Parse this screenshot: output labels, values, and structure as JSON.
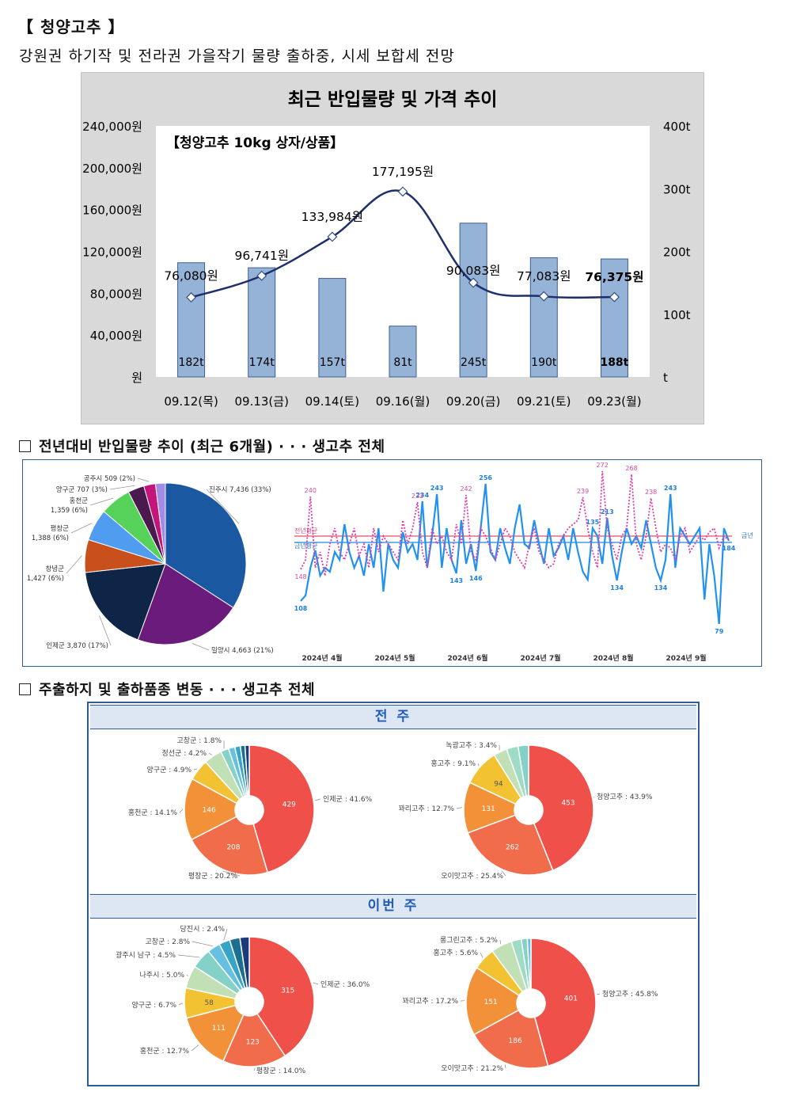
{
  "header": {
    "title": "【 청양고추 】",
    "subtitle": "강원권 하기작 및 전라권 가을작기 물량 출하중, 시세 보합세 전망"
  },
  "chart1": {
    "title": "최근 반입물량 및 가격 추이",
    "inner_label": "【청양고추 10kg 상자/상품】",
    "left_ticks": [
      "240,000원",
      "200,000원",
      "160,000원",
      "120,000원",
      "80,000원",
      "40,000원",
      "원"
    ],
    "right_ticks": [
      "400t",
      "300t",
      "200t",
      "100t",
      "t"
    ]
  },
  "section2": {
    "title": "전년대비 반입물량 추이 (최근 6개월) · · · 생고추 전체"
  },
  "section3": {
    "title": "주출하지 및 출하품종 변동 · · · 생고추 전체"
  },
  "panel": {
    "prev_week": "전 주",
    "this_week": "이번 주"
  },
  "line2_legend": {
    "last_year": "전년평균",
    "this_year": "금년평균",
    "this_short": "금년"
  },
  "chart_data": [
    {
      "type": "bar",
      "title": "최근 반입물량 및 가격 추이",
      "categories": [
        "09.12(목)",
        "09.13(금)",
        "09.14(토)",
        "09.16(월)",
        "09.20(금)",
        "09.21(토)",
        "09.23(월)"
      ],
      "series": [
        {
          "name": "반입물량",
          "values": [
            182,
            174,
            157,
            81,
            245,
            190,
            188
          ],
          "labels": [
            "182t",
            "174t",
            "157t",
            "81t",
            "245t",
            "190t",
            "188t"
          ],
          "axis": "right",
          "color": "#95b3d7"
        },
        {
          "name": "가격",
          "values": [
            76080,
            96741,
            133984,
            177195,
            90083,
            77083,
            76375
          ],
          "labels": [
            "76,080원",
            "96,741원",
            "133,984원",
            "177,195원",
            "90,083원",
            "77,083원",
            "76,375원"
          ],
          "axis": "left",
          "color": "#1f2f6b"
        }
      ],
      "ylim": [
        0,
        240000
      ],
      "y2lim": [
        0,
        400
      ]
    },
    {
      "type": "pie",
      "slices": [
        {
          "label": "진주시 7,436 (33%)",
          "value": 7436,
          "color": "#1b58a2"
        },
        {
          "label": "밀양시 4,663 (21%)",
          "value": 4663,
          "color": "#6b1b7b"
        },
        {
          "label": "인제군 3,870 (17%)",
          "value": 3870,
          "color": "#0f2548"
        },
        {
          "label": "창녕군 1,427 (6%)",
          "value": 1427,
          "color": "#c9501c"
        },
        {
          "label": "평창군 1,388 (6%)",
          "value": 1388,
          "color": "#4f9cf0"
        },
        {
          "label": "홍천군 1,359 (6%)",
          "value": 1359,
          "color": "#56d15a"
        },
        {
          "label": "양구군 707 (3%)",
          "value": 707,
          "color": "#4a1a4f"
        },
        {
          "label": "공주시 509 (2%)",
          "value": 509,
          "color": "#c4157a"
        },
        {
          "label": "",
          "value": 430,
          "color": "#a48be8"
        }
      ]
    },
    {
      "type": "line",
      "x_ticks": [
        "2024년 4월",
        "2024년 5월",
        "2024년 6월",
        "2024년 7월",
        "2024년 8월",
        "2024년 9월"
      ],
      "ylim": [
        60,
        280
      ],
      "series": [
        {
          "name": "금년",
          "color": "#2291ef",
          "average": 182,
          "values": [
            108,
            115,
            150,
            172,
            140,
            150,
            145,
            170,
            160,
            205,
            170,
            150,
            165,
            140,
            180,
            150,
            200,
            120,
            180,
            160,
            150,
            195,
            170,
            180,
            160,
            234,
            150,
            190,
            243,
            150,
            200,
            160,
            143,
            210,
            155,
            180,
            146,
            200,
            256,
            170,
            160,
            200,
            175,
            155,
            200,
            230,
            180,
            175,
            210,
            180,
            155,
            200,
            165,
            175,
            190,
            160,
            200,
            170,
            145,
            135,
            200,
            190,
            155,
            213,
            165,
            134,
            170,
            200,
            180,
            190,
            175,
            210,
            180,
            150,
            134,
            160,
            243,
            150,
            200,
            190,
            180,
            190,
            200,
            110,
            180,
            140,
            79,
            200,
            184
          ]
        },
        {
          "name": "전년",
          "color": "#d93ea8",
          "average": 190,
          "values": [
            148,
            160,
            240,
            150,
            170,
            140,
            180,
            200,
            170,
            160,
            180,
            200,
            165,
            180,
            150,
            200,
            170,
            190,
            180,
            170,
            160,
            210,
            180,
            200,
            233,
            170,
            150,
            200,
            180,
            190,
            170,
            160,
            205,
            180,
            242,
            170,
            160,
            200,
            190,
            175,
            160,
            180,
            200,
            190,
            170,
            160,
            150,
            180,
            200,
            170,
            160,
            150,
            155,
            180,
            190,
            200,
            205,
            210,
            239,
            200,
            170,
            150,
            272,
            200,
            180,
            160,
            190,
            200,
            268,
            180,
            160,
            190,
            238,
            200,
            170,
            180,
            175,
            160,
            190,
            200,
            170,
            180,
            190,
            185,
            195,
            200,
            175,
            190,
            185
          ]
        }
      ]
    },
    {
      "type": "pie",
      "group": "전 주 출하지",
      "slices": [
        {
          "label": "인제군 : 41.6%",
          "inner": "429",
          "value": 429,
          "color": "#f0504a"
        },
        {
          "label": "평창군 : 20.2%",
          "inner": "208",
          "value": 208,
          "color": "#f06c4b"
        },
        {
          "label": "홍천군 : 14.1%",
          "inner": "146",
          "value": 146,
          "color": "#f39138"
        },
        {
          "label": "양구군 : 4.9%",
          "inner": "",
          "value": 50,
          "color": "#f2c233"
        },
        {
          "label": "정선군 : 4.2%",
          "inner": "",
          "value": 43,
          "color": "#c2e0b5"
        },
        {
          "label": "고창군 : 1.8%",
          "inner": "",
          "value": 19,
          "color": "#83d1c7"
        },
        {
          "label": "",
          "inner": "",
          "value": 15,
          "color": "#66c1e0"
        },
        {
          "label": "",
          "inner": "",
          "value": 13,
          "color": "#35a4c7"
        },
        {
          "label": "",
          "inner": "",
          "value": 11,
          "color": "#1d6f92"
        },
        {
          "label": "",
          "inner": "",
          "value": 10,
          "color": "#1b3c7a"
        }
      ]
    },
    {
      "type": "pie",
      "group": "전 주 품종",
      "slices": [
        {
          "label": "청양고추 : 43.9%",
          "inner": "453",
          "value": 453,
          "color": "#f0504a"
        },
        {
          "label": "오이맛고추 : 25.4%",
          "inner": "262",
          "value": 262,
          "color": "#f06c4b"
        },
        {
          "label": "꽈리고추 : 12.7%",
          "inner": "131",
          "value": 131,
          "color": "#f39138"
        },
        {
          "label": "홍고추 : 9.1%",
          "inner": "94",
          "value": 94,
          "color": "#f2c233"
        },
        {
          "label": "녹광고추 : 3.4%",
          "inner": "",
          "value": 35,
          "color": "#c2e0b5"
        },
        {
          "label": "",
          "inner": "",
          "value": 30,
          "color": "#9fdcc6"
        },
        {
          "label": "",
          "inner": "",
          "value": 27,
          "color": "#83d1c7"
        }
      ]
    },
    {
      "type": "pie",
      "group": "이번 주 출하지",
      "slices": [
        {
          "label": "인제군 : 36.0%",
          "inner": "315",
          "value": 315,
          "color": "#f0504a"
        },
        {
          "label": "평창군 : 14.0%",
          "inner": "123",
          "value": 123,
          "color": "#f06c4b"
        },
        {
          "label": "홍천군 : 12.7%",
          "inner": "111",
          "value": 111,
          "color": "#f39138"
        },
        {
          "label": "양구군 : 6.7%",
          "inner": "58",
          "value": 58,
          "color": "#f2c233"
        },
        {
          "label": "나주시 : 5.0%",
          "inner": "",
          "value": 44,
          "color": "#c2e0b5"
        },
        {
          "label": "광주시 남구 : 4.5%",
          "inner": "",
          "value": 39,
          "color": "#83d1c7"
        },
        {
          "label": "고창군 : 2.8%",
          "inner": "",
          "value": 25,
          "color": "#66c1e0"
        },
        {
          "label": "당진시 : 2.4%",
          "inner": "",
          "value": 21,
          "color": "#35a4c7"
        },
        {
          "label": "",
          "inner": "",
          "value": 20,
          "color": "#1d6f92"
        },
        {
          "label": "",
          "inner": "",
          "value": 18,
          "color": "#1b3c7a"
        }
      ]
    },
    {
      "type": "pie",
      "group": "이번 주 품종",
      "slices": [
        {
          "label": "청양고추 : 45.8%",
          "inner": "401",
          "value": 401,
          "color": "#f0504a"
        },
        {
          "label": "오이맛고추 : 21.2%",
          "inner": "186",
          "value": 186,
          "color": "#f06c4b"
        },
        {
          "label": "꽈리고추 : 17.2%",
          "inner": "151",
          "value": 151,
          "color": "#f39138"
        },
        {
          "label": "홍고추 : 5.6%",
          "inner": "",
          "value": 49,
          "color": "#f2c233"
        },
        {
          "label": "롱그린고추 : 5.2%",
          "inner": "",
          "value": 46,
          "color": "#c2e0b5"
        },
        {
          "label": "",
          "inner": "",
          "value": 22,
          "color": "#9fdcc6"
        },
        {
          "label": "",
          "inner": "",
          "value": 13,
          "color": "#83d1c7"
        },
        {
          "label": "",
          "inner": "",
          "value": 8,
          "color": "#66c1e0"
        }
      ]
    }
  ]
}
